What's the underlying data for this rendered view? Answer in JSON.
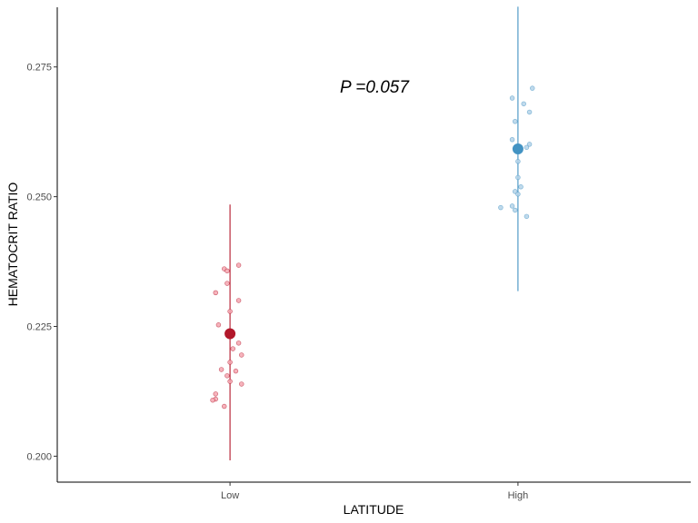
{
  "chart_data": {
    "type": "scatter",
    "xlabel": "LATITUDE",
    "ylabel": "HEMATOCRIT RATIO",
    "categories": [
      "Low",
      "High"
    ],
    "ylim": [
      0.195,
      0.2865
    ],
    "yticks": [
      0.2,
      0.225,
      0.25,
      0.275
    ],
    "ytick_labels": [
      "0.200",
      "0.225",
      "0.250",
      "0.275"
    ],
    "grid": false,
    "legend": "none",
    "annotation": {
      "text": "P =0.057",
      "x": 1.5,
      "y": 0.2747
    },
    "series": [
      {
        "category": "Low",
        "color": "#b2182b",
        "point_fill": "#f4a6b0",
        "mean": 0.2236,
        "error_low": 0.1992,
        "error_high": 0.2485,
        "points": [
          [
            0.98,
            0.2361
          ],
          [
            0.99,
            0.2357
          ],
          [
            1.03,
            0.2368
          ],
          [
            0.99,
            0.2333
          ],
          [
            0.95,
            0.2315
          ],
          [
            1.03,
            0.23
          ],
          [
            1.0,
            0.2279
          ],
          [
            0.96,
            0.2253
          ],
          [
            1.0,
            0.2231
          ],
          [
            1.03,
            0.2218
          ],
          [
            1.01,
            0.2207
          ],
          [
            1.04,
            0.2195
          ],
          [
            1.0,
            0.2181
          ],
          [
            0.97,
            0.2167
          ],
          [
            1.02,
            0.2164
          ],
          [
            0.99,
            0.2155
          ],
          [
            1.0,
            0.2144
          ],
          [
            1.04,
            0.2139
          ],
          [
            0.95,
            0.212
          ],
          [
            0.95,
            0.211
          ],
          [
            0.94,
            0.2108
          ],
          [
            0.98,
            0.2096
          ]
        ]
      },
      {
        "category": "High",
        "color": "#4393c3",
        "point_fill": "#b5d4e9",
        "mean": 0.2592,
        "error_low": 0.2318,
        "error_high": 0.2866,
        "points": [
          [
            2.05,
            0.2709
          ],
          [
            1.98,
            0.269
          ],
          [
            2.02,
            0.2679
          ],
          [
            2.04,
            0.2663
          ],
          [
            1.99,
            0.2645
          ],
          [
            1.98,
            0.261
          ],
          [
            2.04,
            0.2601
          ],
          [
            2.03,
            0.2595
          ],
          [
            2.0,
            0.2568
          ],
          [
            2.0,
            0.2537
          ],
          [
            2.01,
            0.2519
          ],
          [
            1.99,
            0.251
          ],
          [
            2.0,
            0.2505
          ],
          [
            1.98,
            0.2482
          ],
          [
            1.99,
            0.2474
          ],
          [
            2.03,
            0.2462
          ],
          [
            1.94,
            0.2479
          ]
        ]
      }
    ]
  }
}
